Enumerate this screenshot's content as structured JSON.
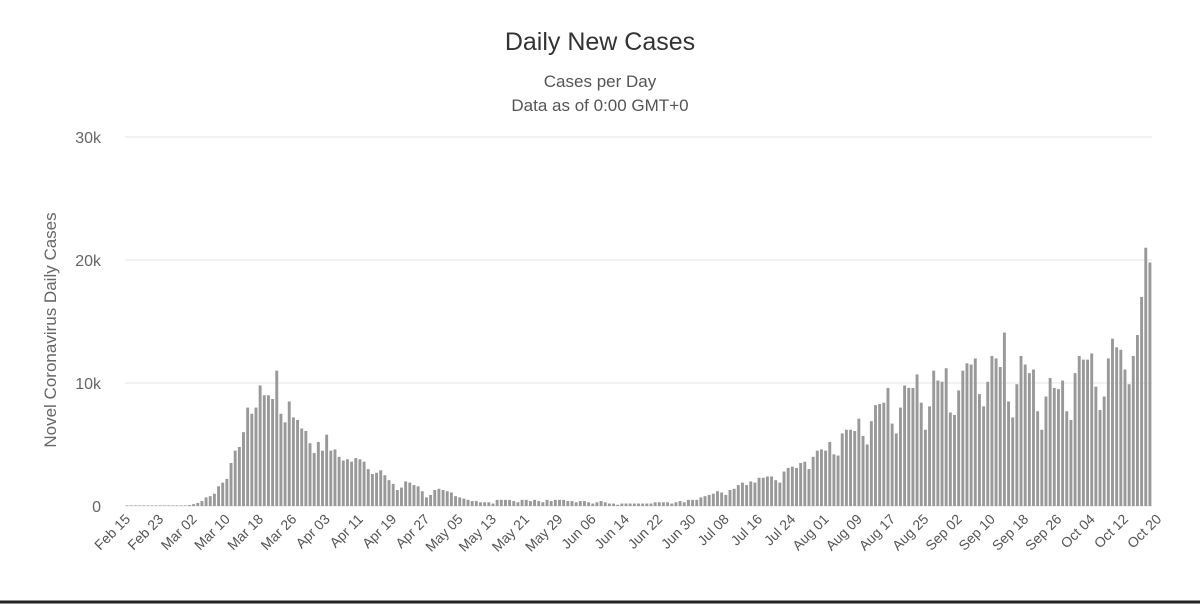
{
  "chart_data": {
    "type": "bar",
    "title": "Daily New Cases",
    "subtitle": [
      "Cases per Day",
      "Data as of 0:00 GMT+0"
    ],
    "xlabel": "",
    "ylabel": "Novel Coronavirus Daily Cases",
    "ylim": [
      0,
      30000
    ],
    "yticks": [
      0,
      10000,
      20000,
      30000
    ],
    "ytick_labels": [
      "0",
      "10k",
      "20k",
      "30k"
    ],
    "grid": true,
    "legend": "none",
    "bar_color": "#999999",
    "x_start": "Feb 15",
    "x_end": "Oct 22",
    "xtick_labels": [
      "Feb 15",
      "Feb 23",
      "Mar 02",
      "Mar 10",
      "Mar 18",
      "Mar 26",
      "Apr 03",
      "Apr 11",
      "Apr 19",
      "Apr 27",
      "May 05",
      "May 13",
      "May 21",
      "May 29",
      "Jun 06",
      "Jun 14",
      "Jun 22",
      "Jun 30",
      "Jul 08",
      "Jul 16",
      "Jul 24",
      "Aug 01",
      "Aug 09",
      "Aug 17",
      "Aug 25",
      "Sep 02",
      "Sep 10",
      "Sep 18",
      "Sep 26",
      "Oct 04",
      "Oct 12",
      "Oct 20"
    ],
    "values": [
      0,
      0,
      0,
      0,
      0,
      0,
      0,
      0,
      0,
      0,
      0,
      0,
      0,
      20,
      40,
      80,
      150,
      250,
      400,
      700,
      800,
      1000,
      1600,
      1900,
      2200,
      3500,
      4500,
      4800,
      6000,
      8000,
      7500,
      8000,
      9800,
      9000,
      9000,
      8700,
      11000,
      7500,
      6800,
      8500,
      7200,
      7000,
      6300,
      6100,
      5100,
      4300,
      5200,
      4500,
      5800,
      4500,
      4600,
      4000,
      3700,
      3800,
      3600,
      3900,
      3800,
      3600,
      3000,
      2600,
      2700,
      2900,
      2500,
      2100,
      1800,
      1300,
      1500,
      2000,
      1900,
      1700,
      1600,
      1200,
      700,
      900,
      1300,
      1400,
      1300,
      1200,
      1100,
      800,
      700,
      600,
      500,
      400,
      400,
      300,
      300,
      300,
      200,
      500,
      500,
      500,
      500,
      400,
      300,
      500,
      500,
      400,
      500,
      400,
      300,
      500,
      400,
      500,
      500,
      500,
      400,
      400,
      300,
      400,
      400,
      300,
      200,
      300,
      400,
      300,
      200,
      200,
      100,
      200,
      200,
      200,
      200,
      200,
      200,
      200,
      200,
      300,
      300,
      300,
      300,
      200,
      300,
      400,
      300,
      500,
      500,
      500,
      700,
      800,
      900,
      1000,
      1200,
      1100,
      900,
      1300,
      1400,
      1700,
      1900,
      1700,
      2000,
      1900,
      2300,
      2300,
      2400,
      2400,
      2100,
      1900,
      2800,
      3100,
      3200,
      3100,
      3500,
      3600,
      3000,
      4000,
      4500,
      4600,
      4500,
      5200,
      4200,
      4100,
      5900,
      6200,
      6200,
      6100,
      7100,
      5700,
      5000,
      6900,
      8200,
      8300,
      8400,
      9600,
      6700,
      5900,
      8000,
      9800,
      9600,
      9600,
      10700,
      8400,
      6200,
      8100,
      11000,
      10200,
      10100,
      11200,
      7600,
      7400,
      9400,
      11000,
      11600,
      11500,
      12000,
      9100,
      8100,
      10100,
      12200,
      12000,
      11300,
      14100,
      8500,
      7200,
      9900,
      12200,
      11500,
      10800,
      11100,
      7700,
      6200,
      8900,
      10400,
      9600,
      9500,
      10200,
      7700,
      7000,
      10800,
      12200,
      11900,
      11900,
      12400,
      9700,
      7800,
      8900,
      12000,
      13600,
      12900,
      12700,
      11100,
      9900,
      12200,
      13900,
      17000,
      21000,
      19800
    ]
  }
}
